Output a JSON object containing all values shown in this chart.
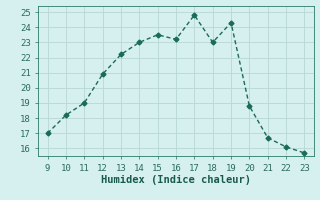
{
  "x": [
    9,
    10,
    11,
    12,
    13,
    14,
    15,
    16,
    17,
    18,
    19,
    20,
    21,
    22,
    23
  ],
  "y": [
    17.0,
    18.2,
    19.0,
    20.9,
    22.2,
    23.0,
    23.5,
    23.2,
    24.8,
    23.0,
    24.3,
    18.8,
    16.7,
    16.1,
    15.7
  ],
  "line_color": "#1a6b5a",
  "marker": "D",
  "marker_size": 2.5,
  "xlabel": "Humidex (Indice chaleur)",
  "xlim": [
    8.5,
    23.5
  ],
  "ylim": [
    15.5,
    25.4
  ],
  "xticks": [
    9,
    10,
    11,
    12,
    13,
    14,
    15,
    16,
    17,
    18,
    19,
    20,
    21,
    22,
    23
  ],
  "yticks": [
    16,
    17,
    18,
    19,
    20,
    21,
    22,
    23,
    24,
    25
  ],
  "bg_color": "#d6f0ef",
  "grid_color": "#b8d8d4",
  "tick_labelsize": 6.5,
  "xlabel_fontsize": 7.5,
  "linewidth": 1.0
}
